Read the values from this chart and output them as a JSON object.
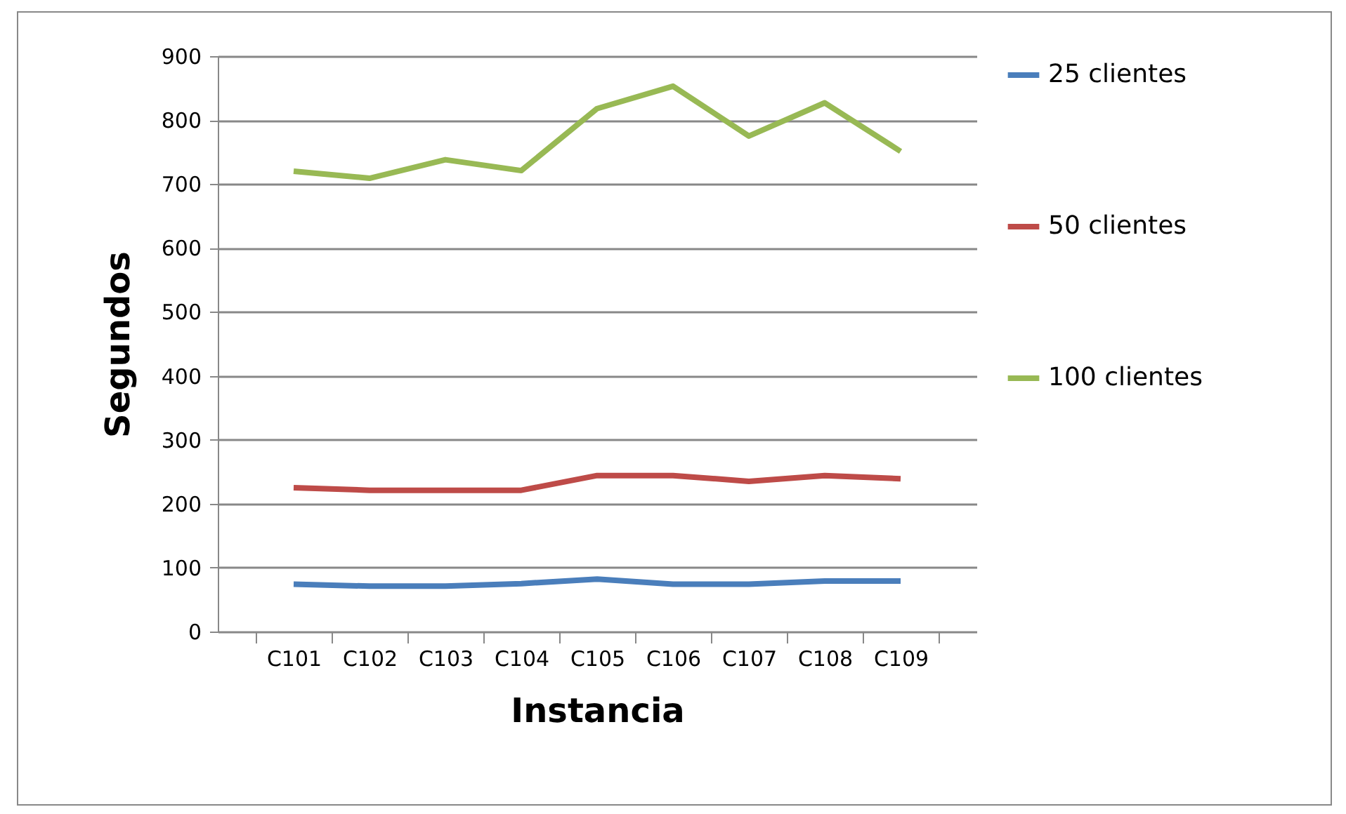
{
  "chart_data": {
    "type": "line",
    "xlabel": "Instancia",
    "ylabel": "Segundos",
    "categories": [
      "C101",
      "C102",
      "C103",
      "C104",
      "C105",
      "C106",
      "C107",
      "C108",
      "C109"
    ],
    "series": [
      {
        "name": "25 clientes",
        "color": "#4a7ebb",
        "values": [
          74,
          71,
          71,
          75,
          82,
          74,
          74,
          79,
          79
        ]
      },
      {
        "name": "50 clientes",
        "color": "#be4b48",
        "values": [
          225,
          221,
          221,
          221,
          244,
          244,
          235,
          244,
          239
        ]
      },
      {
        "name": "100 clientes",
        "color": "#98b954",
        "values": [
          720,
          709,
          738,
          721,
          818,
          853,
          775,
          827,
          751
        ]
      }
    ],
    "ylim": [
      0,
      900
    ],
    "yticks": [
      0,
      100,
      200,
      300,
      400,
      500,
      600,
      700,
      800,
      900
    ],
    "grid": "y",
    "legend": "right",
    "marker": "none",
    "line_style": "solid"
  }
}
